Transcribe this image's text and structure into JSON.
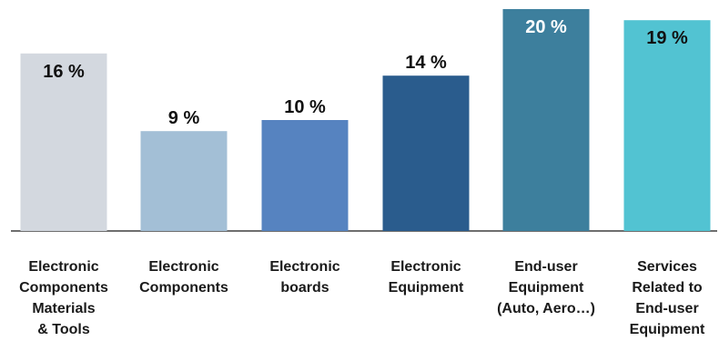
{
  "chart_data": {
    "type": "bar",
    "categories": [
      [
        "Electronic",
        "Components",
        "Materials",
        "& Tools"
      ],
      [
        "Electronic",
        "Components"
      ],
      [
        "Electronic",
        "boards"
      ],
      [
        "Electronic",
        "Equipment"
      ],
      [
        "End-user",
        "Equipment",
        "(Auto, Aero…)"
      ],
      [
        "Services",
        "Related to",
        "End-user",
        "Equipment"
      ]
    ],
    "values": [
      16,
      9,
      10,
      14,
      20,
      19
    ],
    "data_labels": [
      "16 %",
      "9 %",
      "10 %",
      "14 %",
      "20 %",
      "19 %"
    ],
    "colors": [
      "#d3d8df",
      "#a3bfd6",
      "#5683c0",
      "#2a5c8d",
      "#3d7f9d",
      "#52c3d2"
    ],
    "label_colors": [
      "#111111",
      "#111111",
      "#111111",
      "#111111",
      "#ffffff",
      "#111111"
    ],
    "label_position": [
      "inside",
      "above",
      "above",
      "above",
      "inside",
      "inside"
    ],
    "title": "",
    "xlabel": "",
    "ylabel": "",
    "ylim": [
      0,
      20
    ],
    "grid": false,
    "legend": "none",
    "baseline_color": "#6e6e6e"
  }
}
